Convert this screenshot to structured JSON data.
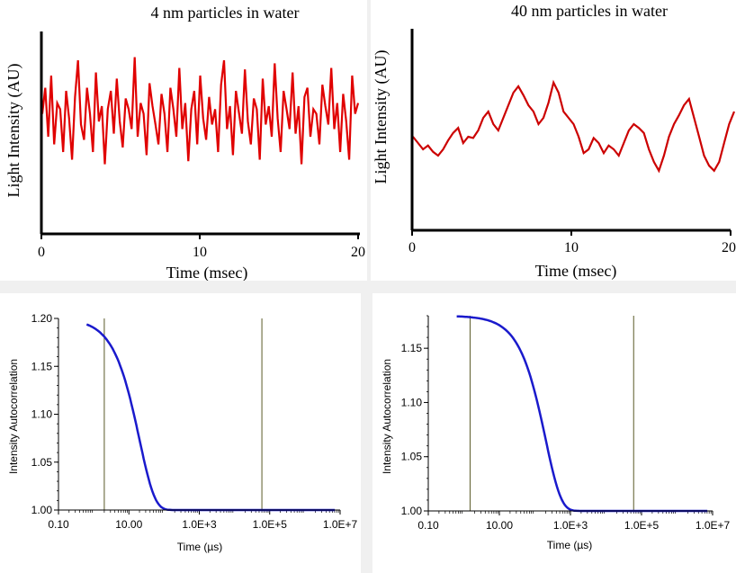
{
  "chart_data": [
    {
      "type": "line",
      "title": "4 nm particles in water",
      "xlabel": "Time (msec)",
      "ylabel": "Light Intensity (AU)",
      "xlim": [
        0,
        20
      ],
      "x_ticks": [
        "0",
        "10",
        "20"
      ],
      "series_color": "#e00000",
      "series": [
        {
          "values": [
            0.55,
            0.72,
            0.4,
            0.8,
            0.35,
            0.62,
            0.58,
            0.3,
            0.7,
            0.52,
            0.25,
            0.66,
            0.9,
            0.48,
            0.38,
            0.72,
            0.55,
            0.3,
            0.82,
            0.5,
            0.6,
            0.22,
            0.58,
            0.7,
            0.42,
            0.78,
            0.5,
            0.33,
            0.65,
            0.58,
            0.45,
            0.92,
            0.4,
            0.62,
            0.55,
            0.28,
            0.75,
            0.6,
            0.48,
            0.35,
            0.68,
            0.55,
            0.3,
            0.72,
            0.58,
            0.4,
            0.85,
            0.45,
            0.62,
            0.24,
            0.58,
            0.7,
            0.35,
            0.8,
            0.52,
            0.38,
            0.66,
            0.48,
            0.58,
            0.3,
            0.74,
            0.9,
            0.45,
            0.6,
            0.28,
            0.7,
            0.56,
            0.42,
            0.84,
            0.5,
            0.35,
            0.65,
            0.58,
            0.25,
            0.78,
            0.48,
            0.6,
            0.4,
            0.88,
            0.52,
            0.3,
            0.7,
            0.58,
            0.45,
            0.82,
            0.42,
            0.6,
            0.22,
            0.66,
            0.72,
            0.4,
            0.58,
            0.55,
            0.35,
            0.74,
            0.6,
            0.48,
            0.85,
            0.45,
            0.62,
            0.3,
            0.68,
            0.5,
            0.25,
            0.8,
            0.55,
            0.62
          ]
        }
      ]
    },
    {
      "type": "line",
      "title": "40 nm particles in water",
      "xlabel": "Time (msec)",
      "ylabel": "Light Intensity (AU)",
      "xlim": [
        0,
        20
      ],
      "x_ticks": [
        "0",
        "10",
        "20"
      ],
      "series_color": "#cc0000",
      "series": [
        {
          "values": [
            0.45,
            0.4,
            0.35,
            0.38,
            0.33,
            0.3,
            0.35,
            0.42,
            0.48,
            0.52,
            0.4,
            0.45,
            0.44,
            0.5,
            0.6,
            0.65,
            0.55,
            0.5,
            0.6,
            0.7,
            0.8,
            0.85,
            0.78,
            0.7,
            0.65,
            0.55,
            0.6,
            0.72,
            0.88,
            0.8,
            0.65,
            0.6,
            0.55,
            0.45,
            0.32,
            0.35,
            0.44,
            0.4,
            0.32,
            0.38,
            0.35,
            0.3,
            0.4,
            0.5,
            0.55,
            0.52,
            0.48,
            0.35,
            0.25,
            0.18,
            0.3,
            0.45,
            0.55,
            0.62,
            0.7,
            0.75,
            0.6,
            0.45,
            0.3,
            0.22,
            0.18,
            0.25,
            0.4,
            0.55,
            0.65
          ]
        }
      ]
    },
    {
      "type": "line",
      "xlabel": "Time (µs)",
      "ylabel": "Intensity Autocorrelation",
      "xscale": "log",
      "xlim": [
        0.1,
        10000000
      ],
      "ylim": [
        1.0,
        1.2
      ],
      "x_ticks": [
        "0.10",
        "10.00",
        "1.0E+3",
        "1.0E+5",
        "1.0E+7"
      ],
      "y_ticks": [
        "1.00",
        "1.05",
        "1.10",
        "1.15",
        "1.20"
      ],
      "markers_us": [
        2,
        60000
      ],
      "series_color": "#1a1acc",
      "series": [
        {
          "baseline": 1.0,
          "amplitude": 0.2,
          "decay_time_us": 20
        }
      ]
    },
    {
      "type": "line",
      "xlabel": "Time (µs)",
      "ylabel": "Intensity Autocorrelation",
      "xscale": "log",
      "xlim": [
        0.1,
        10000000
      ],
      "ylim": [
        1.0,
        1.18
      ],
      "x_ticks": [
        "0.10",
        "10.00",
        "1.0E+3",
        "1.0E+5",
        "1.0E+7"
      ],
      "y_ticks": [
        "1.00",
        "1.05",
        "1.10",
        "1.15"
      ],
      "markers_us": [
        1.5,
        60000
      ],
      "series_color": "#1a1acc",
      "series": [
        {
          "baseline": 1.0,
          "amplitude": 0.18,
          "decay_time_us": 200
        }
      ]
    }
  ]
}
